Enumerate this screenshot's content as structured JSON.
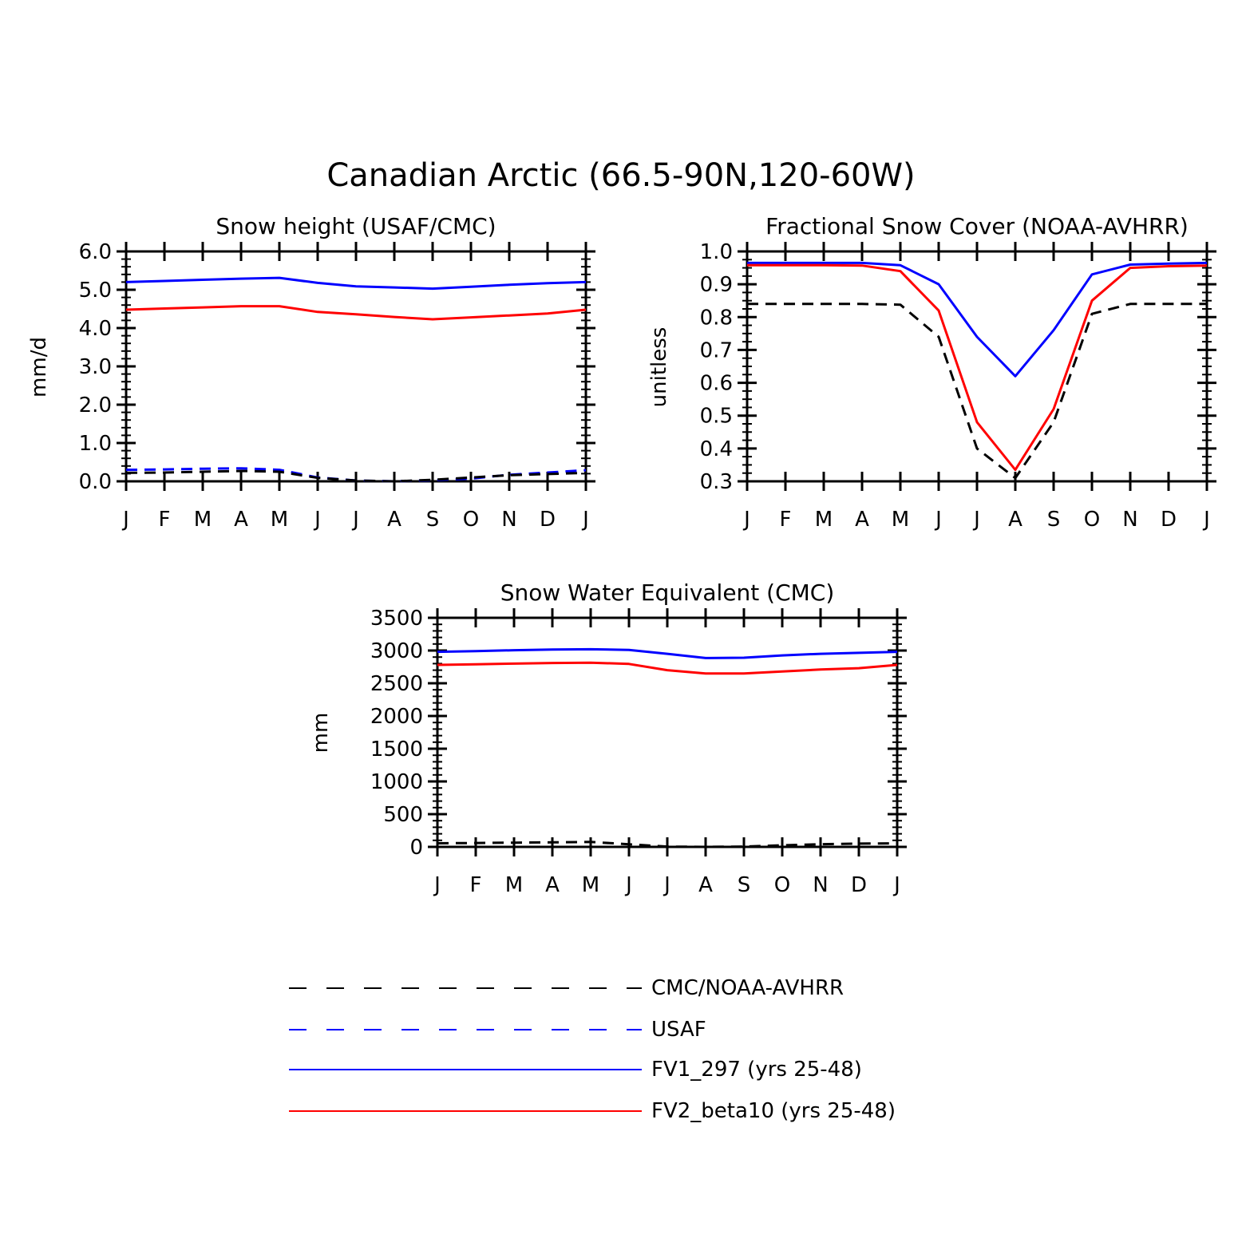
{
  "figure": {
    "title": "Canadian Arctic (66.5-90N,120-60W)"
  },
  "legend": {
    "entries": [
      {
        "key": "obs",
        "label": "CMC/NOAA-AVHRR",
        "color": "#000000",
        "dash": true
      },
      {
        "key": "usaf",
        "label": "USAF",
        "color": "#0000ff",
        "dash": true
      },
      {
        "key": "fv1",
        "label": "FV1_297 (yrs 25-48)",
        "color": "#0000ff",
        "dash": false
      },
      {
        "key": "fv2",
        "label": "FV2_beta10 (yrs 25-48)",
        "color": "#ff0000",
        "dash": false
      }
    ]
  },
  "chart_data": [
    {
      "id": "snow-height",
      "type": "line",
      "title": "Snow height (USAF/CMC)",
      "xlabel": "",
      "ylabel": "mm/d",
      "categories": [
        "J",
        "F",
        "M",
        "A",
        "M",
        "J",
        "J",
        "A",
        "S",
        "O",
        "N",
        "D",
        "J"
      ],
      "ylim": [
        0,
        6
      ],
      "yticks": [
        "0.0",
        "1.0",
        "2.0",
        "3.0",
        "4.0",
        "5.0",
        "6.0"
      ],
      "ytick_values": [
        0,
        1,
        2,
        3,
        4,
        5,
        6
      ],
      "yminor_step": 0.2,
      "series": [
        {
          "key": "fv1",
          "name": "FV1_297 (yrs 25-48)",
          "color": "#0000ff",
          "dash": false,
          "values": [
            5.2,
            5.23,
            5.26,
            5.29,
            5.31,
            5.18,
            5.09,
            5.06,
            5.03,
            5.08,
            5.13,
            5.17,
            5.2
          ]
        },
        {
          "key": "fv2",
          "name": "FV2_beta10 (yrs 25-48)",
          "color": "#ff0000",
          "dash": false,
          "values": [
            4.48,
            4.51,
            4.54,
            4.57,
            4.57,
            4.42,
            4.36,
            4.29,
            4.23,
            4.28,
            4.33,
            4.38,
            4.48
          ]
        },
        {
          "key": "usaf",
          "name": "USAF",
          "color": "#0000ff",
          "dash": true,
          "values": [
            0.3,
            0.31,
            0.33,
            0.34,
            0.3,
            0.1,
            0.02,
            0.0,
            0.03,
            0.07,
            0.17,
            0.23,
            0.29
          ]
        },
        {
          "key": "obs",
          "name": "CMC/NOAA-AVHRR",
          "color": "#000000",
          "dash": true,
          "values": [
            0.22,
            0.23,
            0.25,
            0.27,
            0.25,
            0.09,
            0.02,
            0.0,
            0.04,
            0.1,
            0.16,
            0.19,
            0.22
          ]
        }
      ]
    },
    {
      "id": "snow-cover",
      "type": "line",
      "title": "Fractional Snow Cover (NOAA-AVHRR)",
      "xlabel": "",
      "ylabel": "unitless",
      "categories": [
        "J",
        "F",
        "M",
        "A",
        "M",
        "J",
        "J",
        "A",
        "S",
        "O",
        "N",
        "D",
        "J"
      ],
      "ylim": [
        0.3,
        1.0
      ],
      "yticks": [
        "0.3",
        "0.4",
        "0.5",
        "0.6",
        "0.7",
        "0.8",
        "0.9",
        "1.0"
      ],
      "ytick_values": [
        0.3,
        0.4,
        0.5,
        0.6,
        0.7,
        0.8,
        0.9,
        1.0
      ],
      "yminor_step": 0.025,
      "series": [
        {
          "key": "fv1",
          "name": "FV1_297 (yrs 25-48)",
          "color": "#0000ff",
          "dash": false,
          "values": [
            0.965,
            0.965,
            0.965,
            0.965,
            0.958,
            0.9,
            0.74,
            0.62,
            0.76,
            0.93,
            0.96,
            0.963,
            0.965
          ]
        },
        {
          "key": "fv2",
          "name": "FV2_beta10 (yrs 25-48)",
          "color": "#ff0000",
          "dash": false,
          "values": [
            0.958,
            0.958,
            0.958,
            0.957,
            0.94,
            0.82,
            0.48,
            0.335,
            0.52,
            0.85,
            0.95,
            0.955,
            0.957
          ]
        },
        {
          "key": "obs",
          "name": "CMC/NOAA-AVHRR",
          "color": "#000000",
          "dash": true,
          "values": [
            0.84,
            0.84,
            0.84,
            0.84,
            0.838,
            0.74,
            0.4,
            0.31,
            0.48,
            0.81,
            0.84,
            0.84,
            0.84
          ]
        }
      ]
    },
    {
      "id": "swe",
      "type": "line",
      "title": "Snow Water Equivalent (CMC)",
      "xlabel": "",
      "ylabel": "mm",
      "categories": [
        "J",
        "F",
        "M",
        "A",
        "M",
        "J",
        "J",
        "A",
        "S",
        "O",
        "N",
        "D",
        "J"
      ],
      "ylim": [
        0,
        3500
      ],
      "yticks": [
        "0",
        "500",
        "1000",
        "1500",
        "2000",
        "2500",
        "3000",
        "3500"
      ],
      "ytick_values": [
        0,
        500,
        1000,
        1500,
        2000,
        2500,
        3000,
        3500
      ],
      "yminor_step": 100,
      "series": [
        {
          "key": "fv1",
          "name": "FV1_297 (yrs 25-48)",
          "color": "#0000ff",
          "dash": false,
          "values": [
            2980,
            2990,
            3005,
            3015,
            3020,
            3010,
            2950,
            2885,
            2890,
            2925,
            2950,
            2965,
            2980
          ]
        },
        {
          "key": "fv2",
          "name": "FV2_beta10 (yrs 25-48)",
          "color": "#ff0000",
          "dash": false,
          "values": [
            2780,
            2790,
            2800,
            2810,
            2815,
            2795,
            2700,
            2650,
            2650,
            2680,
            2710,
            2730,
            2780
          ]
        },
        {
          "key": "obs",
          "name": "CMC/NOAA-AVHRR",
          "color": "#000000",
          "dash": true,
          "values": [
            55,
            60,
            65,
            70,
            75,
            40,
            5,
            0,
            5,
            25,
            40,
            50,
            55
          ]
        }
      ]
    }
  ]
}
